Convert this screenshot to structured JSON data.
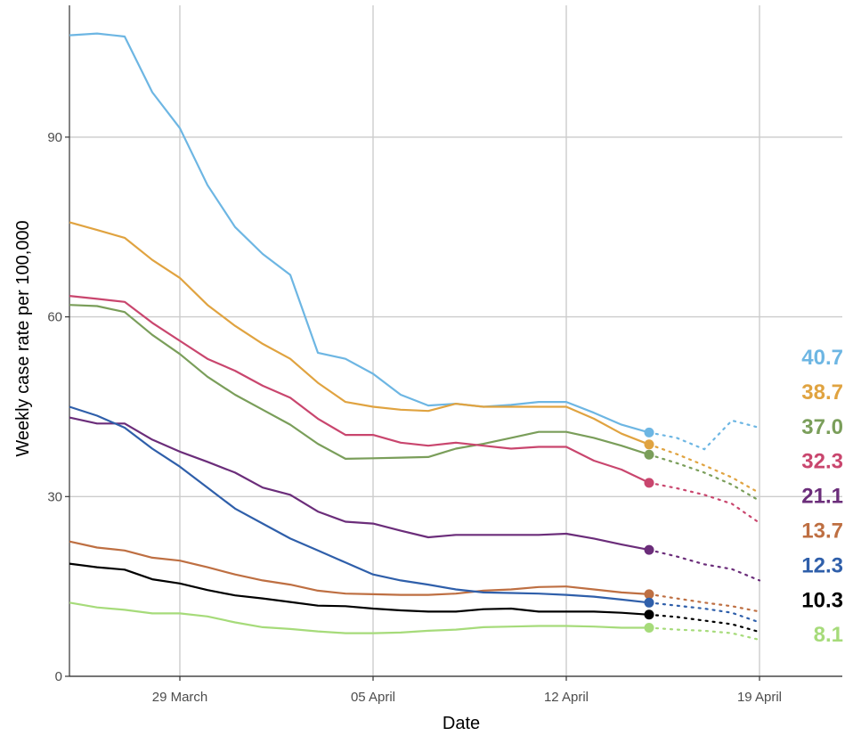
{
  "chart_data": {
    "type": "line",
    "xlabel": "Date",
    "ylabel": "Weekly case rate per 100,000",
    "xlim": [
      "2021-03-25",
      "2021-04-22"
    ],
    "ylim": [
      0,
      112
    ],
    "grid": true,
    "x_ticks": [
      {
        "date": "2021-03-29",
        "label": "29 March"
      },
      {
        "date": "2021-04-05",
        "label": "05 April"
      },
      {
        "date": "2021-04-12",
        "label": "12 April"
      },
      {
        "date": "2021-04-19",
        "label": "19 April"
      }
    ],
    "y_ticks": [
      {
        "value": 0,
        "label": "0"
      },
      {
        "value": 30,
        "label": "30"
      },
      {
        "value": 60,
        "label": "60"
      },
      {
        "value": 90,
        "label": "90"
      }
    ],
    "series": [
      {
        "color": "#6DB6E3",
        "end_label": "40.7",
        "x": [
          "2021-03-25",
          "2021-03-26",
          "2021-03-27",
          "2021-03-28",
          "2021-03-29",
          "2021-03-30",
          "2021-03-31",
          "2021-04-01",
          "2021-04-02",
          "2021-04-03",
          "2021-04-04",
          "2021-04-05",
          "2021-04-06",
          "2021-04-07",
          "2021-04-08",
          "2021-04-09",
          "2021-04-10",
          "2021-04-11",
          "2021-04-12",
          "2021-04-13",
          "2021-04-14",
          "2021-04-15"
        ],
        "y": [
          107,
          107.3,
          106.8,
          97.5,
          91.5,
          82,
          75,
          70.5,
          67,
          54,
          53,
          50.5,
          47,
          45.2,
          45.5,
          45,
          45.3,
          45.8,
          45.8,
          44,
          42,
          40.7
        ],
        "proj_x": [
          "2021-04-15",
          "2021-04-16",
          "2021-04-17",
          "2021-04-18",
          "2021-04-19"
        ],
        "proj_y": [
          40.7,
          39.8,
          37.9,
          42.7,
          41.5
        ]
      },
      {
        "color": "#E0A340",
        "end_label": "38.7",
        "x": [
          "2021-03-25",
          "2021-03-26",
          "2021-03-27",
          "2021-03-28",
          "2021-03-29",
          "2021-03-30",
          "2021-03-31",
          "2021-04-01",
          "2021-04-02",
          "2021-04-03",
          "2021-04-04",
          "2021-04-05",
          "2021-04-06",
          "2021-04-07",
          "2021-04-08",
          "2021-04-09",
          "2021-04-10",
          "2021-04-11",
          "2021-04-12",
          "2021-04-13",
          "2021-04-14",
          "2021-04-15"
        ],
        "y": [
          75.8,
          74.5,
          73.2,
          69.5,
          66.5,
          62,
          58.5,
          55.5,
          53,
          49,
          45.8,
          45,
          44.5,
          44.3,
          45.5,
          45,
          45,
          45,
          45,
          43,
          40.5,
          38.7
        ],
        "proj_x": [
          "2021-04-15",
          "2021-04-16",
          "2021-04-17",
          "2021-04-18",
          "2021-04-19"
        ],
        "proj_y": [
          38.7,
          37.1,
          35.2,
          33.2,
          30.6
        ]
      },
      {
        "color": "#7A9E5A",
        "end_label": "37.0",
        "x": [
          "2021-03-25",
          "2021-03-26",
          "2021-03-27",
          "2021-03-28",
          "2021-03-29",
          "2021-03-30",
          "2021-03-31",
          "2021-04-01",
          "2021-04-02",
          "2021-04-03",
          "2021-04-04",
          "2021-04-05",
          "2021-04-06",
          "2021-04-07",
          "2021-04-08",
          "2021-04-09",
          "2021-04-10",
          "2021-04-11",
          "2021-04-12",
          "2021-04-13",
          "2021-04-14",
          "2021-04-15"
        ],
        "y": [
          62,
          61.8,
          60.8,
          57,
          53.8,
          50,
          47,
          44.5,
          42,
          38.8,
          36.3,
          36.4,
          36.5,
          36.6,
          38,
          38.8,
          39.8,
          40.8,
          40.8,
          39.8,
          38.5,
          37.0
        ],
        "proj_x": [
          "2021-04-15",
          "2021-04-16",
          "2021-04-17",
          "2021-04-18",
          "2021-04-19"
        ],
        "proj_y": [
          37.0,
          35.6,
          34.0,
          32.0,
          29.3
        ]
      },
      {
        "color": "#C9466E",
        "end_label": "32.3",
        "x": [
          "2021-03-25",
          "2021-03-26",
          "2021-03-27",
          "2021-03-28",
          "2021-03-29",
          "2021-03-30",
          "2021-03-31",
          "2021-04-01",
          "2021-04-02",
          "2021-04-03",
          "2021-04-04",
          "2021-04-05",
          "2021-04-06",
          "2021-04-07",
          "2021-04-08",
          "2021-04-09",
          "2021-04-10",
          "2021-04-11",
          "2021-04-12",
          "2021-04-13",
          "2021-04-14",
          "2021-04-15"
        ],
        "y": [
          63.5,
          63,
          62.5,
          59,
          56,
          53,
          51,
          48.5,
          46.5,
          43,
          40.3,
          40.3,
          39,
          38.5,
          39,
          38.5,
          38,
          38.3,
          38.3,
          36,
          34.5,
          32.3
        ],
        "proj_x": [
          "2021-04-15",
          "2021-04-16",
          "2021-04-17",
          "2021-04-18",
          "2021-04-19"
        ],
        "proj_y": [
          32.3,
          31.4,
          30.3,
          28.8,
          25.6
        ]
      },
      {
        "color": "#6B2D7A",
        "end_label": "21.1",
        "x": [
          "2021-03-25",
          "2021-03-26",
          "2021-03-27",
          "2021-03-28",
          "2021-03-29",
          "2021-03-30",
          "2021-03-31",
          "2021-04-01",
          "2021-04-02",
          "2021-04-03",
          "2021-04-04",
          "2021-04-05",
          "2021-04-06",
          "2021-04-07",
          "2021-04-08",
          "2021-04-09",
          "2021-04-10",
          "2021-04-11",
          "2021-04-12",
          "2021-04-13",
          "2021-04-14",
          "2021-04-15"
        ],
        "y": [
          43.2,
          42.2,
          42.2,
          39.5,
          37.5,
          35.8,
          34,
          31.5,
          30.3,
          27.5,
          25.8,
          25.5,
          24.3,
          23.2,
          23.6,
          23.6,
          23.6,
          23.6,
          23.8,
          23,
          22,
          21.1
        ],
        "proj_x": [
          "2021-04-15",
          "2021-04-16",
          "2021-04-17",
          "2021-04-18",
          "2021-04-19"
        ],
        "proj_y": [
          21.1,
          20.0,
          18.7,
          17.9,
          16.0
        ]
      },
      {
        "color": "#BE6F42",
        "end_label": "13.7",
        "x": [
          "2021-03-25",
          "2021-03-26",
          "2021-03-27",
          "2021-03-28",
          "2021-03-29",
          "2021-03-30",
          "2021-03-31",
          "2021-04-01",
          "2021-04-02",
          "2021-04-03",
          "2021-04-04",
          "2021-04-05",
          "2021-04-06",
          "2021-04-07",
          "2021-04-08",
          "2021-04-09",
          "2021-04-10",
          "2021-04-11",
          "2021-04-12",
          "2021-04-13",
          "2021-04-14",
          "2021-04-15"
        ],
        "y": [
          22.5,
          21.5,
          21,
          19.8,
          19.3,
          18.2,
          17,
          16,
          15.3,
          14.3,
          13.8,
          13.7,
          13.6,
          13.6,
          13.8,
          14.3,
          14.5,
          14.9,
          15,
          14.5,
          14,
          13.7
        ],
        "proj_x": [
          "2021-04-15",
          "2021-04-16",
          "2021-04-17",
          "2021-04-18",
          "2021-04-19"
        ],
        "proj_y": [
          13.7,
          13.0,
          12.3,
          11.7,
          10.8
        ]
      },
      {
        "color": "#2F5FAA",
        "end_label": "12.3",
        "x": [
          "2021-03-25",
          "2021-03-26",
          "2021-03-27",
          "2021-03-28",
          "2021-03-29",
          "2021-03-30",
          "2021-03-31",
          "2021-04-01",
          "2021-04-02",
          "2021-04-03",
          "2021-04-04",
          "2021-04-05",
          "2021-04-06",
          "2021-04-07",
          "2021-04-08",
          "2021-04-09",
          "2021-04-10",
          "2021-04-11",
          "2021-04-12",
          "2021-04-13",
          "2021-04-14",
          "2021-04-15"
        ],
        "y": [
          45,
          43.5,
          41.5,
          38,
          35,
          31.5,
          28,
          25.5,
          23,
          21,
          19,
          17,
          16,
          15.3,
          14.5,
          14,
          13.9,
          13.8,
          13.6,
          13.3,
          12.8,
          12.3
        ],
        "proj_x": [
          "2021-04-15",
          "2021-04-16",
          "2021-04-17",
          "2021-04-18",
          "2021-04-19"
        ],
        "proj_y": [
          12.3,
          11.8,
          11.3,
          10.6,
          9.0
        ]
      },
      {
        "color": "#000000",
        "end_label": "10.3",
        "x": [
          "2021-03-25",
          "2021-03-26",
          "2021-03-27",
          "2021-03-28",
          "2021-03-29",
          "2021-03-30",
          "2021-03-31",
          "2021-04-01",
          "2021-04-02",
          "2021-04-03",
          "2021-04-04",
          "2021-04-05",
          "2021-04-06",
          "2021-04-07",
          "2021-04-08",
          "2021-04-09",
          "2021-04-10",
          "2021-04-11",
          "2021-04-12",
          "2021-04-13",
          "2021-04-14",
          "2021-04-15"
        ],
        "y": [
          18.8,
          18.2,
          17.8,
          16.2,
          15.5,
          14.4,
          13.5,
          13,
          12.4,
          11.8,
          11.7,
          11.3,
          11,
          10.8,
          10.8,
          11.2,
          11.3,
          10.8,
          10.8,
          10.8,
          10.6,
          10.3
        ],
        "proj_x": [
          "2021-04-15",
          "2021-04-16",
          "2021-04-17",
          "2021-04-18",
          "2021-04-19"
        ],
        "proj_y": [
          10.3,
          9.9,
          9.3,
          8.7,
          7.4
        ]
      },
      {
        "color": "#A6DB7A",
        "end_label": "8.1",
        "x": [
          "2021-03-25",
          "2021-03-26",
          "2021-03-27",
          "2021-03-28",
          "2021-03-29",
          "2021-03-30",
          "2021-03-31",
          "2021-04-01",
          "2021-04-02",
          "2021-04-03",
          "2021-04-04",
          "2021-04-05",
          "2021-04-06",
          "2021-04-07",
          "2021-04-08",
          "2021-04-09",
          "2021-04-10",
          "2021-04-11",
          "2021-04-12",
          "2021-04-13",
          "2021-04-14",
          "2021-04-15"
        ],
        "y": [
          12.3,
          11.5,
          11.1,
          10.5,
          10.5,
          10,
          9,
          8.2,
          7.9,
          7.5,
          7.2,
          7.2,
          7.3,
          7.6,
          7.8,
          8.2,
          8.3,
          8.4,
          8.4,
          8.3,
          8.1,
          8.1
        ],
        "proj_x": [
          "2021-04-15",
          "2021-04-16",
          "2021-04-17",
          "2021-04-18",
          "2021-04-19"
        ],
        "proj_y": [
          8.1,
          7.8,
          7.6,
          7.2,
          6.1
        ]
      }
    ]
  }
}
